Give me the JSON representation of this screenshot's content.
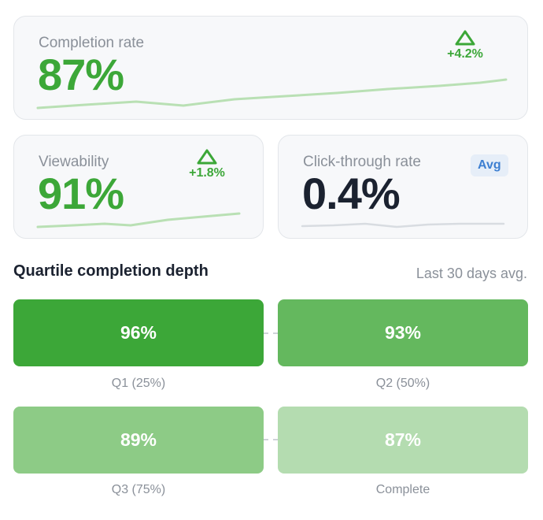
{
  "cards": {
    "completion": {
      "label": "Completion rate",
      "value": "87%",
      "delta": "+4.2%"
    },
    "viewability": {
      "label": "Viewability",
      "value": "91%",
      "delta": "+1.8%"
    },
    "ctr": {
      "label": "Click-through rate",
      "value": "0.4%",
      "badge": "Avg"
    }
  },
  "section": {
    "title": "Quartile completion depth",
    "subtitle": "Last 30 days avg."
  },
  "quartiles": [
    {
      "value": "96%",
      "label": "Q1 (25%)",
      "color": "#3ca738"
    },
    {
      "value": "93%",
      "label": "Q2 (50%)",
      "color": "#64b85e"
    },
    {
      "value": "89%",
      "label": "Q3 (75%)",
      "color": "#8dcb86"
    },
    {
      "value": "87%",
      "label": "Complete",
      "color": "#b4dcb0"
    }
  ],
  "colors": {
    "accent_green": "#3ca738",
    "sparkline_green": "#b9e0b4",
    "sparkline_gray": "#d8dce1",
    "badge_blue": "#3d7fd1"
  }
}
